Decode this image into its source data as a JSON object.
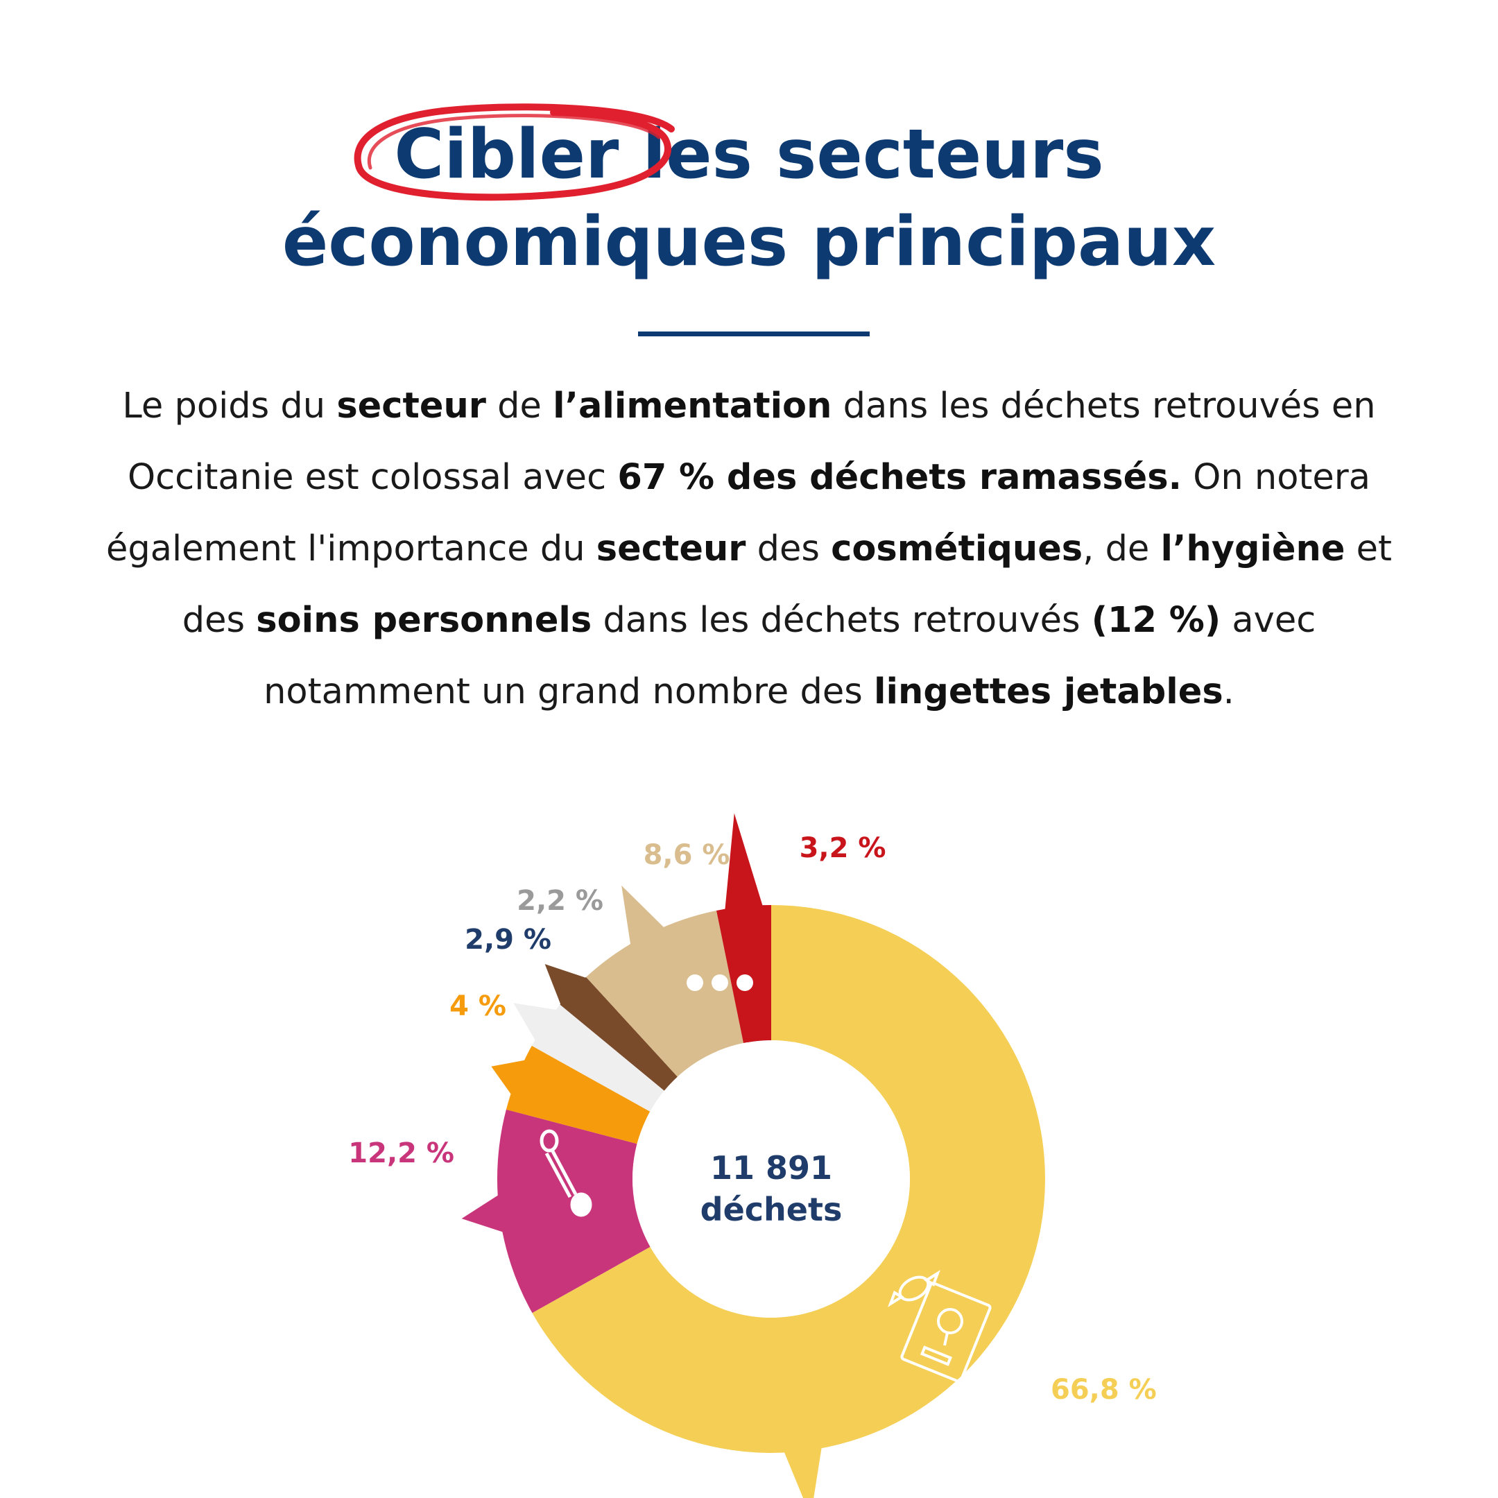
{
  "title": {
    "highlight": "Cibler",
    "line1_rest": " les secteurs",
    "line2": "économiques principaux"
  },
  "intro": {
    "p1": "Le poids du ",
    "b1": "secteur",
    "p2": " de ",
    "b2": "l’alimentation",
    "p3": " dans les déchets retrouvés en Occitanie est colossal avec ",
    "b3": "67 % des déchets ramassés.",
    "p4": " On notera également l'importance du ",
    "b4": "secteur",
    "p5": " des ",
    "b5": "cosmétiques",
    "p6": ", de ",
    "b6": "l’hygiène",
    "p7": " et des ",
    "b7": "soins personnels",
    "p8": " dans les déchets retrouvés ",
    "b8": "(12 %)",
    "p9": " avec notamment un grand nombre des ",
    "b9": "lingettes jetables",
    "p10": "."
  },
  "chart_data": {
    "type": "pie",
    "center_value": "11 891",
    "center_label": "déchets",
    "slices": [
      {
        "label": "66,8 %",
        "value": 66.8,
        "color": "#f5cf55",
        "icon": "candy-packaging-icon"
      },
      {
        "label": "12,2 %",
        "value": 12.2,
        "color": "#c9357a",
        "icon": "cotton-swab-icon"
      },
      {
        "label": "4 %",
        "value": 4.0,
        "color": "#f59b0c"
      },
      {
        "label": "2,9 %",
        "value": 2.9,
        "color": "#efefef",
        "label_color": "#1f3c6b"
      },
      {
        "label": "2,2 %",
        "value": 2.2,
        "color": "#7a4b2a",
        "label_color": "#9a9a9a"
      },
      {
        "label": "8,6 %",
        "value": 8.6,
        "color": "#d9bd8e",
        "icon": "ellipsis-icon"
      },
      {
        "label": "3,2 %",
        "value": 3.2,
        "color": "#c8141b"
      }
    ]
  }
}
